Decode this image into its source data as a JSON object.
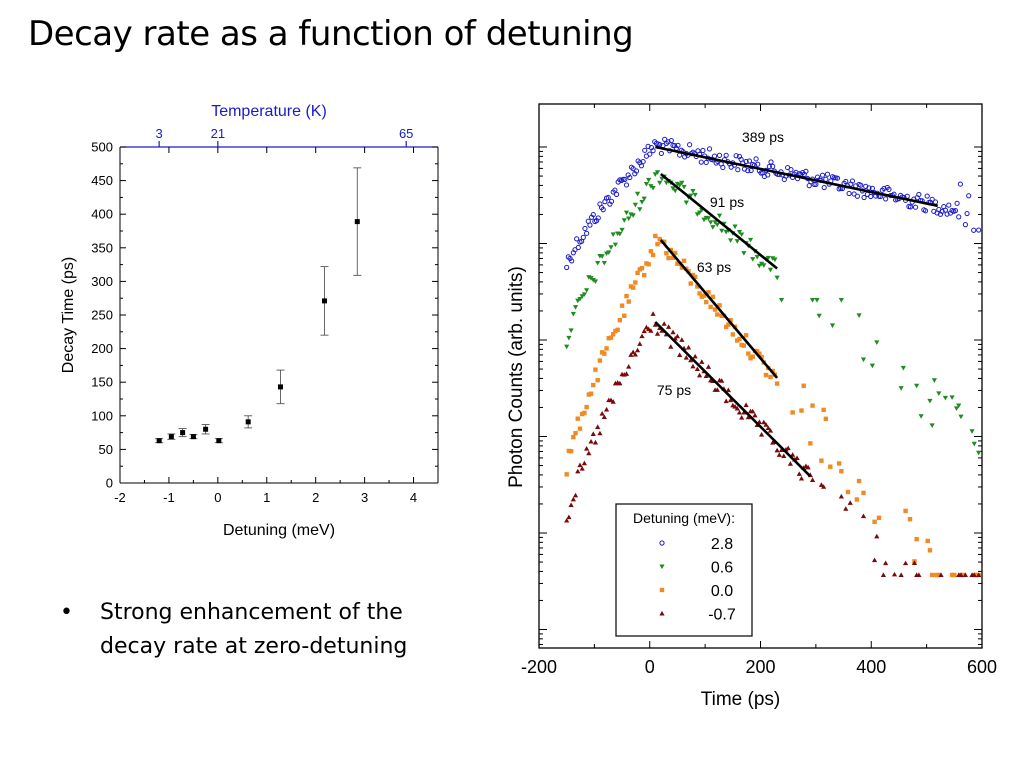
{
  "slide": {
    "title": "Decay rate as a function of detuning",
    "bullet_marker": "•",
    "bullet_text": "Strong enhancement of the decay rate at zero-detuning"
  },
  "colors": {
    "blue": "#1a1acc",
    "green": "#1f8c1f",
    "orange": "#f08a24",
    "darkred": "#7a0a0a"
  },
  "chart_data": [
    {
      "type": "scatter",
      "title": "",
      "xlabel": "Detuning (meV)",
      "ylabel": "Decay Time (ps)",
      "xlim": [
        -2,
        4.5
      ],
      "ylim": [
        0,
        500
      ],
      "xticks": [
        -2,
        -1,
        0,
        1,
        2,
        3,
        4
      ],
      "yticks": [
        0,
        50,
        100,
        150,
        200,
        250,
        300,
        350,
        400,
        450,
        500
      ],
      "top_axis": {
        "label": "Temperature (K)",
        "ticks": [
          {
            "label": "3",
            "detuning": -1.2
          },
          {
            "label": "21",
            "detuning": 0
          },
          {
            "label": "65",
            "detuning": 3.85
          }
        ]
      },
      "points": [
        {
          "x": -1.2,
          "y": 63,
          "err": 3
        },
        {
          "x": -0.95,
          "y": 69,
          "err": 4
        },
        {
          "x": -0.72,
          "y": 75,
          "err": 6
        },
        {
          "x": -0.5,
          "y": 69,
          "err": 3
        },
        {
          "x": -0.25,
          "y": 80,
          "err": 7
        },
        {
          "x": 0.02,
          "y": 63,
          "err": 3
        },
        {
          "x": 0.62,
          "y": 91,
          "err": 9
        },
        {
          "x": 1.28,
          "y": 143,
          "err": 25
        },
        {
          "x": 2.18,
          "y": 271,
          "err": 51
        },
        {
          "x": 2.85,
          "y": 389,
          "err": 80
        }
      ]
    },
    {
      "type": "scatter",
      "title": "",
      "xlabel": "Time (ps)",
      "ylabel": "Photon Counts (arb. units)",
      "xlim": [
        -200,
        600
      ],
      "xticks": [
        -200,
        0,
        200,
        400,
        600
      ],
      "y_scale": "log",
      "grid": false,
      "legend": {
        "title": "Detuning (meV):",
        "placement": "bottom-left",
        "entries": [
          "2.8",
          "0.6",
          "0.0",
          "-0.7"
        ]
      },
      "series": [
        {
          "name": "2.8",
          "marker": "circle-open",
          "color": "#1a1acc",
          "fit_label": "389 ps",
          "fit": [
            [
              10,
              0.0
            ],
            [
              520,
              -0.63
            ]
          ]
        },
        {
          "name": "0.6",
          "marker": "triangle-down",
          "color": "#1f8c1f",
          "fit_label": "91 ps",
          "fit": [
            [
              20,
              0.0
            ],
            [
              230,
              -1.0
            ]
          ]
        },
        {
          "name": "0.0",
          "marker": "square",
          "color": "#f08a24",
          "fit_label": "63 ps",
          "fit": [
            [
              20,
              0.0
            ],
            [
              230,
              -1.45
            ]
          ]
        },
        {
          "name": "-0.7",
          "marker": "triangle-up",
          "color": "#7a0a0a",
          "fit_label": "75 ps",
          "fit": [
            [
              10,
              0.0
            ],
            [
              290,
              -1.62
            ]
          ]
        }
      ]
    }
  ]
}
